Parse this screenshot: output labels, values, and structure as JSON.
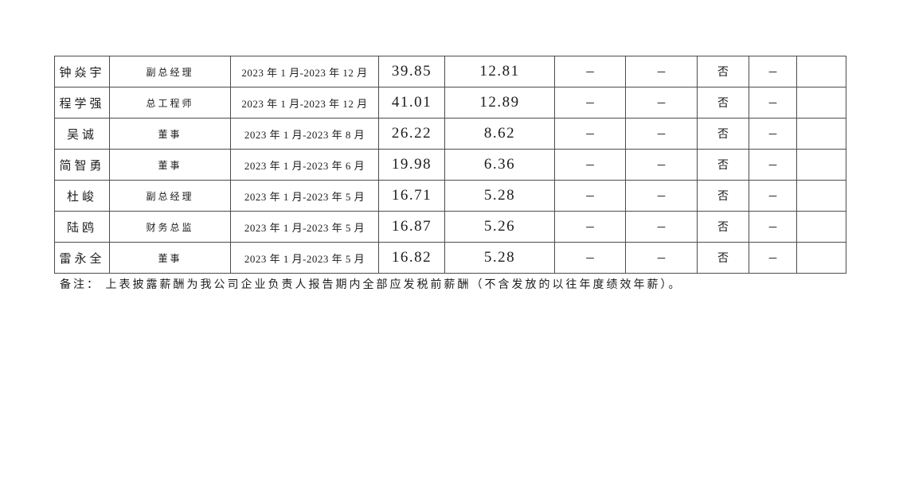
{
  "page": {
    "background_color": "#ffffff",
    "text_color": "#1c1c1c",
    "border_color": "#4c4c4c"
  },
  "table": {
    "description": "continuation rows of an executive pre-tax salary disclosure table (no header row visible)",
    "rows": [
      [
        "钟焱宇",
        "副总经理",
        "2023 年 1 月-2023 年 12 月",
        "39.85",
        "12.81",
        "–",
        "–",
        "否",
        "–",
        ""
      ],
      [
        "程学强",
        "总工程师",
        "2023 年 1 月-2023 年 12 月",
        "41.01",
        "12.89",
        "–",
        "–",
        "否",
        "–",
        ""
      ],
      [
        "吴诚",
        "董事",
        "2023 年 1 月-2023 年 8 月",
        "26.22",
        "8.62",
        "–",
        "–",
        "否",
        "–",
        ""
      ],
      [
        "简智勇",
        "董事",
        "2023 年 1 月-2023 年 6 月",
        "19.98",
        "6.36",
        "–",
        "–",
        "否",
        "–",
        ""
      ],
      [
        "杜峻",
        "副总经理",
        "2023 年 1 月-2023 年 5 月",
        "16.71",
        "5.28",
        "–",
        "–",
        "否",
        "–",
        ""
      ],
      [
        "陆鸥",
        "财务总监",
        "2023 年 1 月-2023 年 5 月",
        "16.87",
        "5.26",
        "–",
        "–",
        "否",
        "–",
        ""
      ],
      [
        "雷永全",
        "董事",
        "2023 年 1 月-2023 年 5 月",
        "16.82",
        "5.28",
        "–",
        "–",
        "否",
        "–",
        ""
      ]
    ]
  },
  "note": {
    "text": "备注： 上表披露薪酬为我公司企业负责人报告期内全部应发税前薪酬（不含发放的以往年度绩效年薪）。"
  }
}
